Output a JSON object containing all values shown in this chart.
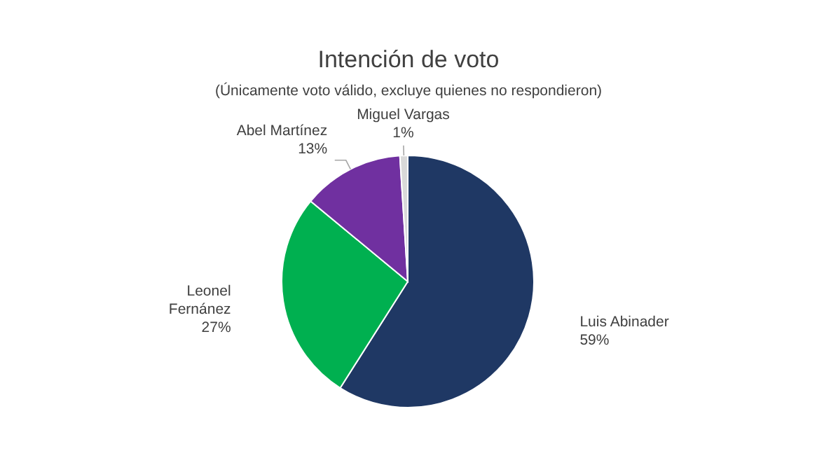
{
  "chart_data": {
    "type": "pie",
    "title": "Intención de voto",
    "subtitle": "(Únicamente voto válido, excluye quienes no respondieron)",
    "categories": [
      "Luis Abinader",
      "Leonel Fernánez",
      "Abel Martínez",
      "Miguel Vargas"
    ],
    "values": [
      59,
      27,
      13,
      1
    ],
    "value_labels": [
      "59%",
      "27%",
      "13%",
      "1%"
    ],
    "colors": [
      "#1f3864",
      "#00b050",
      "#7030a0",
      "#d9d9d9"
    ]
  }
}
